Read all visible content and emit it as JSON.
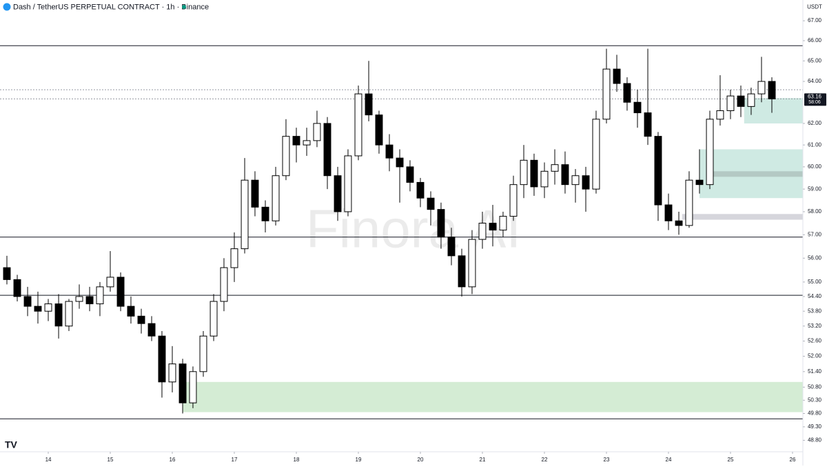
{
  "chart_data": {
    "type": "candlestick",
    "title": "Dash / TetherUS PERPETUAL CONTRACT · 1h · Binance",
    "y_label": "USDT",
    "countdown": "58:06",
    "watermark": "Finora AI",
    "log_scale": true,
    "up_color": "#ffffff",
    "down_color": "#000000",
    "outline_color": "#000000",
    "xlim": [
      13.222,
      26.167
    ],
    "xticks": [
      14,
      15,
      16,
      17,
      18,
      19,
      20,
      21,
      22,
      23,
      24,
      25,
      26
    ],
    "ylim": [
      48.38,
      68.06
    ],
    "yticks": [
      {
        "value": 67,
        "label": "67.00"
      },
      {
        "value": 66,
        "label": "66.00"
      },
      {
        "value": 65,
        "label": "65.00"
      },
      {
        "value": 64,
        "label": "64.00"
      },
      {
        "value": 62,
        "label": "62.00"
      },
      {
        "value": 61,
        "label": "61.00"
      },
      {
        "value": 60,
        "label": "60.00"
      },
      {
        "value": 59,
        "label": "59.00"
      },
      {
        "value": 58,
        "label": "58.00"
      },
      {
        "value": 57,
        "label": "57.00"
      },
      {
        "value": 56,
        "label": "56.00"
      },
      {
        "value": 55,
        "label": "55.00"
      },
      {
        "value": 54.4,
        "label": "54.40"
      },
      {
        "value": 53.8,
        "label": "53.80"
      },
      {
        "value": 53.2,
        "label": "53.20"
      },
      {
        "value": 52.6,
        "label": "52.60"
      },
      {
        "value": 52,
        "label": "52.00"
      },
      {
        "value": 51.4,
        "label": "51.40"
      },
      {
        "value": 50.8,
        "label": "50.80"
      },
      {
        "value": 50.3,
        "label": "50.30"
      },
      {
        "value": 49.8,
        "label": "49.80"
      },
      {
        "value": 49.3,
        "label": "49.30"
      },
      {
        "value": 48.8,
        "label": "48.80"
      }
    ],
    "x": [
      13.333,
      13.5,
      13.667,
      13.833,
      14.0,
      14.167,
      14.333,
      14.5,
      14.667,
      14.833,
      15.0,
      15.167,
      15.333,
      15.5,
      15.667,
      15.833,
      16.0,
      16.167,
      16.333,
      16.5,
      16.667,
      16.833,
      17.0,
      17.167,
      17.333,
      17.5,
      17.667,
      17.833,
      18.0,
      18.167,
      18.333,
      18.5,
      18.667,
      18.833,
      19.0,
      19.167,
      19.333,
      19.5,
      19.667,
      19.833,
      20.0,
      20.167,
      20.333,
      20.5,
      20.667,
      20.833,
      21.0,
      21.167,
      21.333,
      21.5,
      21.667,
      21.833,
      22.0,
      22.167,
      22.333,
      22.5,
      22.667,
      22.833,
      23.0,
      23.167,
      23.333,
      23.5,
      23.667,
      23.833,
      24.0,
      24.167,
      24.333,
      24.5,
      24.667,
      24.833,
      25.0,
      25.167,
      25.333,
      25.5,
      25.667
    ],
    "open": [
      55.6,
      55.1,
      54.4,
      54.0,
      53.8,
      54.1,
      53.2,
      54.2,
      54.4,
      54.1,
      54.8,
      55.2,
      54.0,
      53.6,
      53.3,
      52.8,
      51.0,
      51.7,
      50.2,
      51.4,
      52.8,
      54.2,
      55.6,
      56.4,
      59.4,
      58.2,
      57.6,
      59.6,
      61.4,
      61.0,
      61.2,
      62.0,
      59.6,
      58.0,
      60.5,
      63.4,
      62.4,
      61.0,
      60.4,
      60.0,
      59.3,
      58.6,
      58.1,
      56.9,
      56.1,
      54.8,
      56.8,
      57.5,
      57.2,
      57.8,
      59.2,
      60.3,
      59.1,
      59.8,
      60.1,
      59.2,
      59.6,
      59.0,
      62.2,
      64.6,
      63.9,
      63.0,
      62.5,
      61.4,
      58.3,
      57.6,
      57.4,
      59.4,
      59.2,
      62.2,
      62.6,
      63.3,
      62.8,
      63.4,
      64.0
    ],
    "high": [
      56.1,
      55.3,
      54.8,
      54.6,
      54.3,
      54.5,
      54.3,
      54.9,
      54.8,
      55.0,
      56.3,
      55.4,
      54.4,
      53.9,
      53.6,
      53.0,
      52.4,
      51.9,
      51.6,
      53.0,
      54.5,
      56.0,
      57.1,
      60.4,
      59.8,
      58.5,
      60.0,
      62.2,
      61.8,
      61.8,
      62.6,
      62.3,
      60.0,
      60.8,
      63.8,
      65.0,
      62.6,
      61.5,
      60.8,
      60.3,
      59.5,
      58.9,
      58.4,
      57.3,
      56.4,
      57.2,
      58.0,
      58.3,
      58.0,
      59.6,
      61.0,
      60.6,
      60.2,
      60.8,
      60.7,
      59.9,
      60.0,
      62.6,
      65.6,
      65.3,
      64.2,
      63.6,
      65.6,
      61.6,
      58.8,
      58.0,
      59.8,
      60.8,
      62.6,
      64.3,
      63.6,
      63.8,
      63.7,
      65.2,
      64.2
    ],
    "low": [
      54.9,
      54.2,
      53.6,
      53.3,
      53.4,
      52.7,
      53.0,
      53.9,
      53.8,
      53.6,
      54.6,
      53.8,
      53.3,
      52.9,
      52.6,
      50.4,
      50.6,
      49.8,
      50.0,
      51.2,
      52.6,
      53.8,
      55.0,
      56.2,
      57.8,
      57.1,
      57.4,
      59.4,
      60.2,
      60.5,
      60.9,
      59.0,
      57.6,
      57.8,
      60.3,
      62.1,
      60.6,
      59.8,
      58.4,
      58.9,
      58.2,
      57.4,
      56.4,
      55.7,
      54.4,
      54.5,
      56.4,
      56.5,
      56.9,
      57.6,
      58.6,
      58.7,
      58.6,
      59.2,
      58.8,
      58.4,
      58.0,
      58.8,
      62.0,
      63.5,
      62.6,
      61.8,
      61.0,
      57.6,
      57.2,
      57.0,
      57.3,
      58.8,
      59.0,
      61.9,
      62.2,
      62.3,
      62.4,
      63.0,
      62.5
    ],
    "close": [
      55.1,
      54.4,
      54.0,
      53.8,
      54.1,
      53.2,
      54.2,
      54.4,
      54.1,
      54.8,
      55.2,
      54.0,
      53.6,
      53.3,
      52.8,
      51.0,
      51.7,
      50.2,
      51.4,
      52.8,
      54.2,
      55.6,
      56.4,
      59.4,
      58.2,
      57.6,
      59.6,
      61.4,
      61.0,
      61.2,
      62.0,
      59.6,
      58.0,
      60.5,
      63.4,
      62.4,
      61.0,
      60.4,
      60.0,
      59.3,
      58.6,
      58.1,
      56.9,
      56.1,
      54.8,
      56.8,
      57.5,
      57.2,
      57.8,
      59.2,
      60.3,
      59.1,
      59.8,
      60.1,
      59.2,
      59.6,
      59.0,
      62.2,
      64.6,
      63.9,
      63.0,
      62.5,
      61.4,
      58.3,
      57.6,
      57.4,
      59.4,
      59.2,
      62.2,
      62.6,
      63.3,
      62.8,
      63.4,
      64.0,
      63.16
    ],
    "hlines": [
      {
        "y": 65.75,
        "style": "solid"
      },
      {
        "y": 63.6,
        "style": "dotted"
      },
      {
        "y": 63.16,
        "style": "dotted"
      },
      {
        "y": 56.9,
        "style": "solid"
      },
      {
        "y": 54.45,
        "style": "solid"
      },
      {
        "y": 49.6,
        "style": "solid"
      }
    ],
    "zones": [
      {
        "x0": 16.17,
        "x1": 26.167,
        "y0": 49.85,
        "y1": 51.0,
        "color": "#d4ecd4"
      },
      {
        "x0": 25.22,
        "x1": 26.167,
        "y0": 62.0,
        "y1": 63.2,
        "color": "#cfeae3"
      },
      {
        "x0": 24.5,
        "x1": 26.167,
        "y0": 58.6,
        "y1": 60.8,
        "color": "#cfeae3"
      },
      {
        "x0": 24.67,
        "x1": 26.167,
        "y0": 59.55,
        "y1": 59.8,
        "color": "#b4c9c4"
      },
      {
        "x0": 24.22,
        "x1": 26.167,
        "y0": 57.65,
        "y1": 57.9,
        "color": "#d6d6dc"
      }
    ]
  }
}
